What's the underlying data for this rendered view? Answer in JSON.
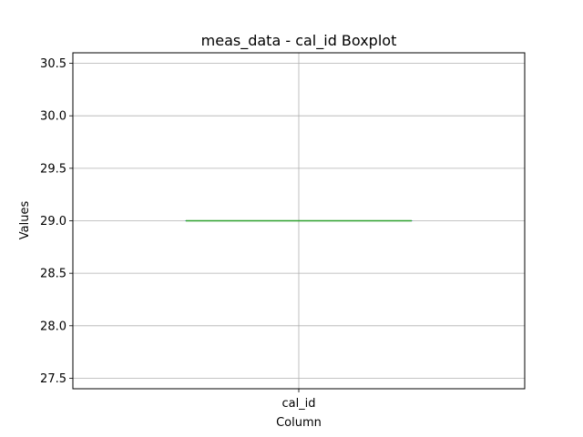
{
  "chart_data": {
    "type": "boxplot",
    "title": "meas_data - cal_id Boxplot",
    "xlabel": "Column",
    "ylabel": "Values",
    "categories": [
      "cal_id"
    ],
    "boxes": [
      {
        "name": "cal_id",
        "min": 29.0,
        "q1": 29.0,
        "median": 29.0,
        "q3": 29.0,
        "max": 29.0
      }
    ],
    "ylim": [
      27.4,
      30.6
    ],
    "yticks": [
      27.5,
      28.0,
      28.5,
      29.0,
      29.5,
      30.0,
      30.5
    ],
    "grid": true,
    "colors": {
      "box": "#1f77b4",
      "median": "#2ca02c",
      "grid": "#b0b0b0",
      "frame": "#000000"
    }
  }
}
